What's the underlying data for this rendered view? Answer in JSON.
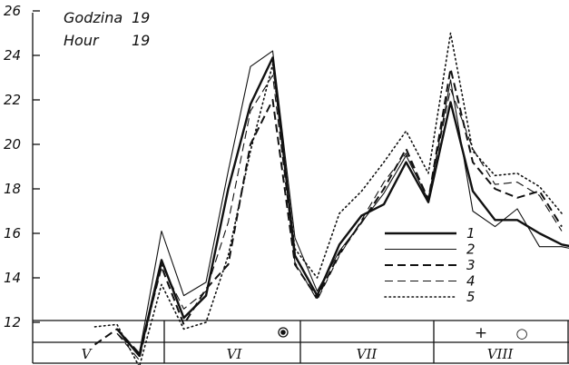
{
  "annotation": {
    "line1_label": "Godzina",
    "line1_value": "19",
    "line2_label": "Hour",
    "line2_value": "19"
  },
  "chart_data": {
    "type": "line",
    "title": "",
    "xlabel": "",
    "ylabel": "",
    "ylim": [
      11,
      26
    ],
    "y_ticks": [
      12,
      14,
      16,
      18,
      20,
      22,
      24,
      26
    ],
    "grid": false,
    "legend_position": "lower-right",
    "x": [
      1,
      2,
      3,
      4,
      5,
      6,
      7,
      8,
      9,
      10,
      11,
      12,
      13,
      14,
      15,
      16,
      17,
      18,
      19,
      20,
      21,
      22,
      23,
      24
    ],
    "series": [
      {
        "name": "1",
        "style": "solid-thick",
        "values": [
          null,
          null,
          11.7,
          10.5,
          14.8,
          12.2,
          13.2,
          18.0,
          21.8,
          23.9,
          15.0,
          13.2,
          15.5,
          16.8,
          17.3,
          19.2,
          17.4,
          21.9,
          17.9,
          16.6,
          16.6,
          16.0,
          15.5,
          15.3
        ]
      },
      {
        "name": "2",
        "style": "solid-thin",
        "values": [
          null,
          null,
          11.5,
          10.6,
          16.1,
          13.2,
          13.8,
          18.8,
          23.5,
          24.2,
          15.8,
          13.4,
          15.2,
          16.5,
          17.8,
          19.5,
          17.5,
          22.9,
          17.0,
          16.3,
          17.1,
          15.4,
          15.4,
          15.2
        ]
      },
      {
        "name": "3",
        "style": "dashed-thick",
        "values": [
          null,
          11.0,
          11.7,
          10.6,
          14.5,
          11.9,
          13.5,
          14.6,
          20.0,
          22.0,
          14.6,
          13.1,
          15.1,
          16.5,
          18.0,
          19.8,
          17.5,
          23.4,
          19.2,
          18.0,
          17.6,
          17.9,
          16.3,
          null
        ]
      },
      {
        "name": "4",
        "style": "dashed-thin",
        "values": [
          null,
          null,
          11.5,
          10.3,
          14.6,
          12.6,
          13.4,
          16.5,
          21.5,
          23.1,
          14.7,
          13.0,
          15.0,
          16.6,
          18.3,
          19.6,
          17.6,
          22.5,
          19.8,
          18.2,
          18.3,
          17.7,
          16.1,
          null
        ]
      },
      {
        "name": "5",
        "style": "dotted",
        "values": [
          null,
          11.8,
          11.9,
          10.0,
          13.7,
          11.7,
          12.0,
          15.0,
          19.7,
          23.6,
          15.3,
          14.0,
          16.9,
          17.9,
          19.2,
          20.6,
          18.7,
          25.0,
          19.7,
          18.6,
          18.7,
          18.1,
          16.9,
          null
        ]
      }
    ],
    "bottom_strip": {
      "symbols": [
        "●",
        "+",
        "○"
      ],
      "months": [
        "V",
        "VI",
        "VII",
        "VIII"
      ]
    }
  }
}
